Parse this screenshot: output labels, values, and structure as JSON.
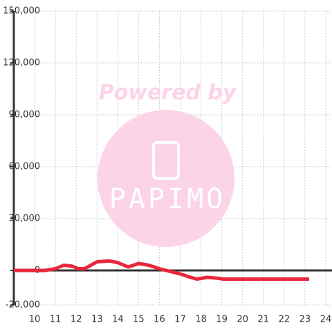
{
  "chart_data": {
    "type": "line",
    "watermark": {
      "line1": "Powered by",
      "line2": "PAPIMO"
    },
    "x": [
      9,
      10.5,
      11,
      11.4,
      11.8,
      12.1,
      12.4,
      13,
      13.6,
      14,
      14.5,
      15,
      15.5,
      16,
      16.5,
      17,
      17.5,
      17.8,
      18.3,
      18.8,
      19.1,
      21.6,
      23.2
    ],
    "series": [
      {
        "color": "#e8283c",
        "values": [
          0,
          0,
          1000,
          3000,
          2500,
          1000,
          1000,
          5000,
          5500,
          4500,
          2000,
          4000,
          3000,
          1000,
          -500,
          -2000,
          -4000,
          -5000,
          -4000,
          -4500,
          -5000,
          -5000,
          -5000
        ]
      }
    ],
    "xlim": [
      9,
      24.3
    ],
    "xticks": [
      10,
      11,
      12,
      13,
      14,
      15,
      16,
      17,
      18,
      19,
      20,
      21,
      22,
      23,
      24
    ],
    "ylim": [
      -20000,
      150000
    ],
    "yticks": [
      {
        "value": -20000,
        "label": "-20,000"
      },
      0,
      {
        "value": 30000,
        "label": "30,000"
      },
      {
        "value": 60000,
        "label": "60,000"
      },
      {
        "value": 90000,
        "label": "90,000"
      },
      {
        "value": 120000,
        "label": "120,000"
      },
      {
        "value": 150000,
        "label": "150,000"
      }
    ],
    "grid": true
  }
}
